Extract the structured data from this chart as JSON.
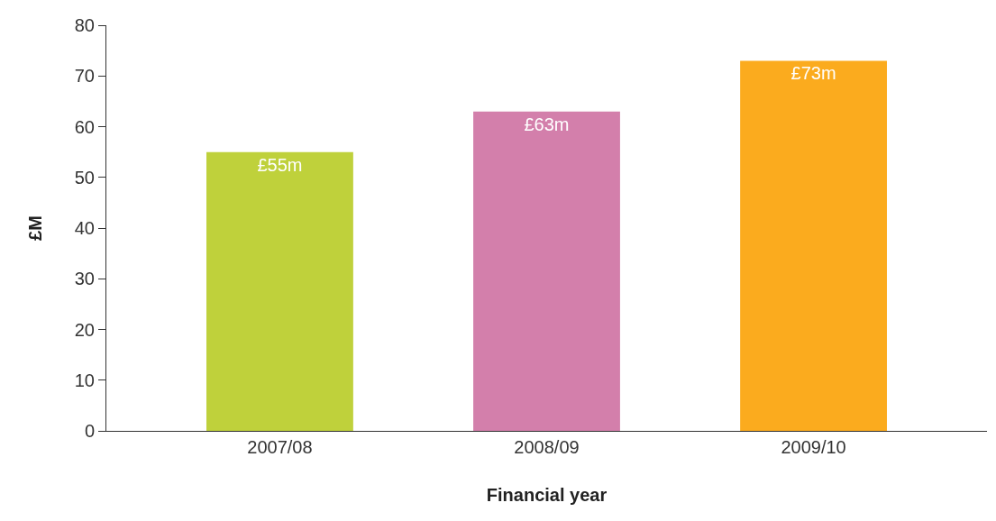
{
  "chart_data": {
    "type": "bar",
    "xlabel": "Financial year",
    "ylabel": "£M",
    "categories": [
      "2007/08",
      "2008/09",
      "2009/10"
    ],
    "values": [
      55,
      63,
      73
    ],
    "colors": [
      "#bfd13b",
      "#d37fab",
      "#fbab1e"
    ],
    "value_labels": [
      "£55m",
      "£63m",
      "£73m"
    ],
    "ylim": [
      0,
      80
    ],
    "yticks": [
      0,
      10,
      20,
      30,
      40,
      50,
      60,
      70,
      80
    ]
  }
}
